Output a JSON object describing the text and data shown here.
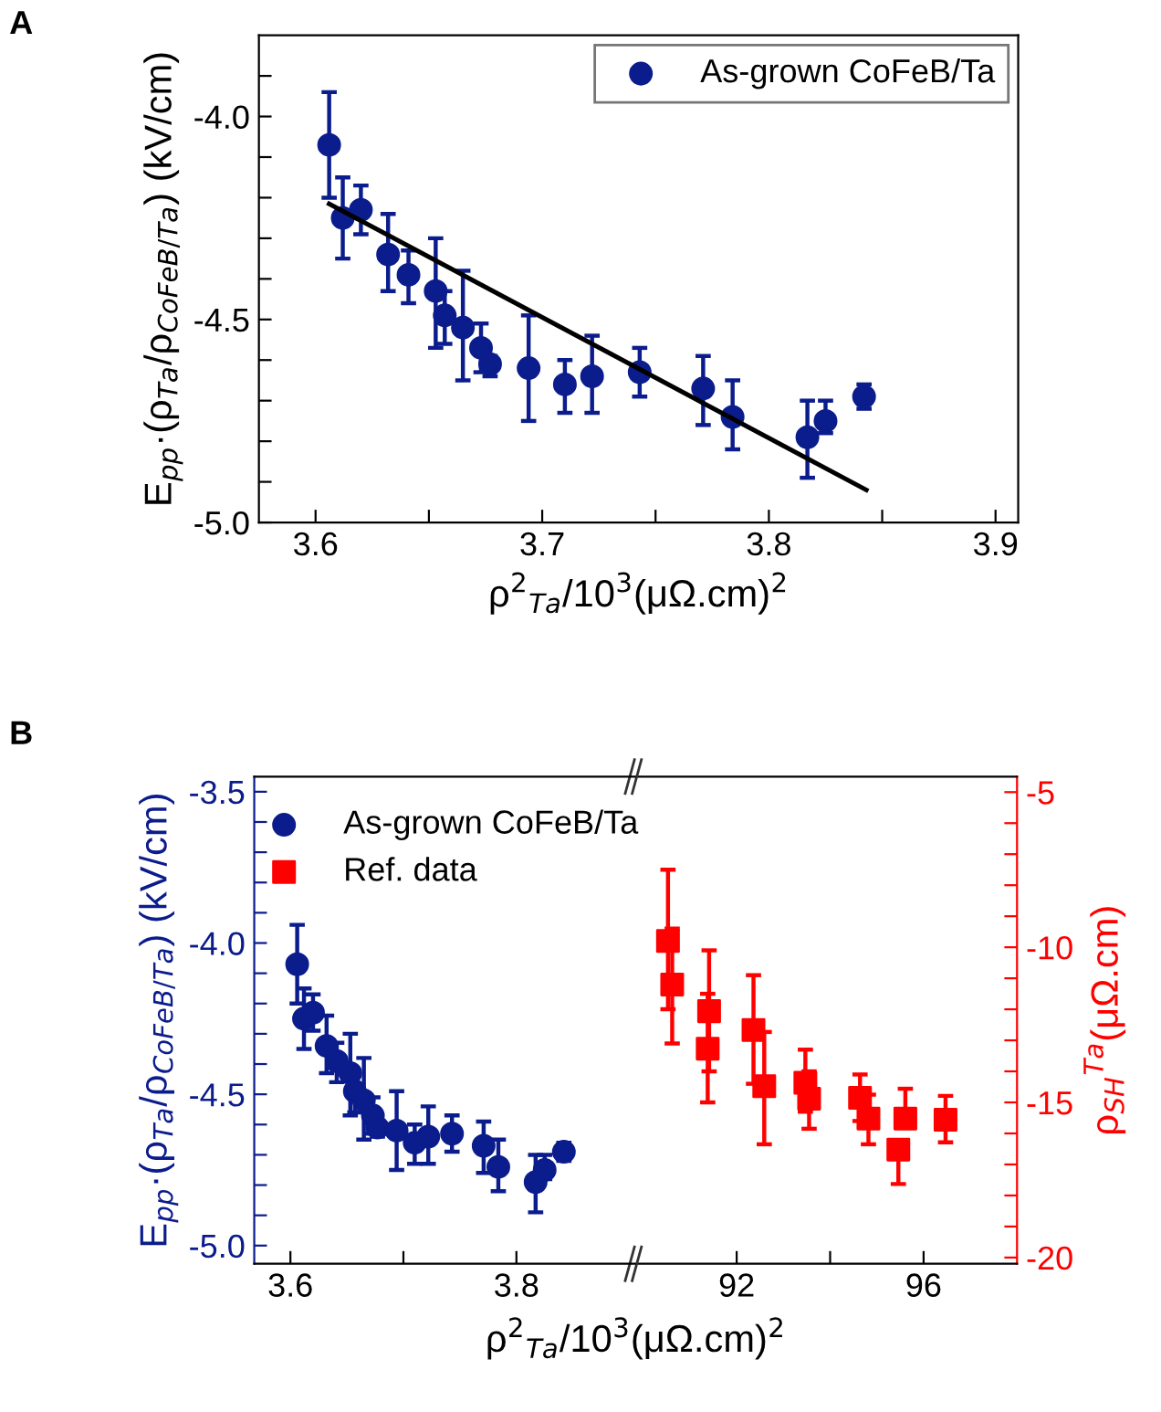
{
  "chart_data": [
    {
      "type": "scatter",
      "annotations": [
        "A"
      ],
      "xlabel": "ρ$^{2}$$_{Ta}$/10$^{3}$(μΩ.cm)$^{2}$",
      "ylabel": "E$_{pp}$·(ρ$_{Ta}$/ρ$_{CoFeB/Ta}$) (kV/cm)",
      "xlim": [
        3.575,
        3.91
      ],
      "ylim": [
        -5.0,
        -3.8
      ],
      "xticks": [
        3.6,
        {
          "value": 3.65,
          "label": null
        },
        3.7,
        {
          "value": 3.75,
          "label": null
        },
        3.8,
        {
          "value": 3.85,
          "label": null
        },
        3.9
      ],
      "yticks": [
        {
          "value": -5.0,
          "label": "-5.0"
        },
        {
          "value": -4.9,
          "label": null
        },
        {
          "value": -4.8,
          "label": null
        },
        {
          "value": -4.7,
          "label": null
        },
        {
          "value": -4.6,
          "label": null
        },
        {
          "value": -4.5,
          "label": "-4.5"
        },
        {
          "value": -4.4,
          "label": null
        },
        {
          "value": -4.3,
          "label": null
        },
        {
          "value": -4.2,
          "label": null
        },
        {
          "value": -4.1,
          "label": null
        },
        {
          "value": -4.0,
          "label": "-4.0"
        },
        {
          "value": -3.9,
          "label": null
        }
      ],
      "legend": "top right",
      "series": [
        {
          "name": "As-grown CoFeB/Ta",
          "color": "#0b1c8c",
          "marker": "circle",
          "x": [
            3.606,
            3.612,
            3.62,
            3.632,
            3.641,
            3.653,
            3.657,
            3.665,
            3.673,
            3.677,
            3.694,
            3.71,
            3.722,
            3.743,
            3.771,
            3.784,
            3.817,
            3.825,
            3.842
          ],
          "values": [
            -4.07,
            -4.25,
            -4.23,
            -4.34,
            -4.39,
            -4.43,
            -4.49,
            -4.52,
            -4.57,
            -4.61,
            -4.62,
            -4.66,
            -4.64,
            -4.63,
            -4.67,
            -4.74,
            -4.79,
            -4.75,
            -4.69
          ],
          "errors": [
            [
              -4.2,
              -3.94
            ],
            [
              -4.35,
              -4.15
            ],
            [
              -4.29,
              -4.17
            ],
            [
              -4.43,
              -4.24
            ],
            [
              -4.46,
              -4.33
            ],
            [
              -4.57,
              -4.3
            ],
            [
              -4.56,
              -4.43
            ],
            [
              -4.65,
              -4.38
            ],
            [
              -4.63,
              -4.51
            ],
            [
              -4.64,
              -4.59
            ],
            [
              -4.75,
              -4.49
            ],
            [
              -4.73,
              -4.6
            ],
            [
              -4.73,
              -4.54
            ],
            [
              -4.69,
              -4.57
            ],
            [
              -4.76,
              -4.59
            ],
            [
              -4.82,
              -4.65
            ],
            [
              -4.89,
              -4.7
            ],
            [
              -4.78,
              -4.7
            ],
            [
              -4.72,
              -4.66
            ]
          ]
        },
        {
          "type": "line",
          "color": "#000000",
          "x": [
            3.606,
            3.843
          ],
          "values": [
            -4.215,
            -4.92
          ]
        }
      ]
    },
    {
      "type": "scatter",
      "annotations": [
        "B"
      ],
      "xlabel": "ρ$^{2}$$_{Ta}$/10$^{3}$(μΩ.cm)$^{2}$",
      "ylabel": "E$_{pp}$·(ρ$_{Ta}$/ρ$_{CoFeB/Ta}$) (kV/cm)",
      "xlim": [
        3.568,
        3.905
      ],
      "ylim": [
        -5.06,
        -3.45
      ],
      "xticks": [
        3.6,
        {
          "value": 3.7,
          "label": null
        },
        3.8
      ],
      "yticks": [
        {
          "value": -5.0,
          "label": "-5.0"
        },
        {
          "value": -4.9,
          "label": null
        },
        {
          "value": -4.8,
          "label": null
        },
        {
          "value": -4.7,
          "label": null
        },
        {
          "value": -4.6,
          "label": null
        },
        {
          "value": -4.5,
          "label": "-4.5"
        },
        {
          "value": -4.4,
          "label": null
        },
        {
          "value": -4.3,
          "label": null
        },
        {
          "value": -4.2,
          "label": null
        },
        {
          "value": -4.1,
          "label": null
        },
        {
          "value": -4.0,
          "label": "-4.0"
        },
        {
          "value": -3.9,
          "label": null
        },
        {
          "value": -3.8,
          "label": null
        },
        {
          "value": -3.7,
          "label": null
        },
        {
          "value": -3.6,
          "label": null
        },
        {
          "value": -3.5,
          "label": "-3.5"
        }
      ],
      "legend": "top",
      "series": [
        {
          "name": "As-grown CoFeB/Ta",
          "color": "#0b1c8c",
          "marker": "circle",
          "x": [
            3.606,
            3.612,
            3.62,
            3.632,
            3.641,
            3.653,
            3.657,
            3.665,
            3.673,
            3.677,
            3.694,
            3.71,
            3.722,
            3.743,
            3.771,
            3.784,
            3.817,
            3.825,
            3.842
          ],
          "values": [
            -4.07,
            -4.25,
            -4.23,
            -4.34,
            -4.39,
            -4.43,
            -4.49,
            -4.52,
            -4.57,
            -4.61,
            -4.62,
            -4.66,
            -4.64,
            -4.63,
            -4.67,
            -4.74,
            -4.79,
            -4.75,
            -4.69
          ],
          "errors": [
            [
              -4.2,
              -3.94
            ],
            [
              -4.35,
              -4.15
            ],
            [
              -4.29,
              -4.17
            ],
            [
              -4.43,
              -4.24
            ],
            [
              -4.46,
              -4.33
            ],
            [
              -4.57,
              -4.3
            ],
            [
              -4.56,
              -4.49
            ],
            [
              -4.65,
              -4.38
            ],
            [
              -4.63,
              -4.51
            ],
            [
              -4.64,
              -4.61
            ],
            [
              -4.75,
              -4.49
            ],
            [
              -4.73,
              -4.6
            ],
            [
              -4.73,
              -4.54
            ],
            [
              -4.69,
              -4.57
            ],
            [
              -4.76,
              -4.59
            ],
            [
              -4.82,
              -4.65
            ],
            [
              -4.89,
              -4.7
            ],
            [
              -4.78,
              -4.7
            ],
            [
              -4.72,
              -4.66
            ]
          ]
        }
      ]
    },
    {
      "type": "scatter",
      "y2label": "ρ$_{SH}$$^{Ta}$(μΩ.cm)",
      "xlim": [
        89.9,
        98
      ],
      "y2lim": [
        -20.2,
        -4.5
      ],
      "xticks": [
        92,
        {
          "value": 94,
          "label": null
        },
        96
      ],
      "y2ticks": [
        -20,
        {
          "value": -19,
          "label": null
        },
        {
          "value": -18,
          "label": null
        },
        {
          "value": -17,
          "label": null
        },
        {
          "value": -16,
          "label": null
        },
        -15,
        {
          "value": -14,
          "label": null
        },
        {
          "value": -13,
          "label": null
        },
        {
          "value": -12,
          "label": null
        },
        {
          "value": -11,
          "label": null
        },
        -10,
        {
          "value": -9,
          "label": null
        },
        {
          "value": -8,
          "label": null
        },
        {
          "value": -7,
          "label": null
        },
        {
          "value": -6,
          "label": null
        },
        -5
      ],
      "series": [
        {
          "name": "Ref. data",
          "color": "#ff0000",
          "axis": "y2",
          "marker": "square",
          "x": [
            90.53,
            90.62,
            91.41,
            91.38,
            92.36,
            92.59,
            93.47,
            93.55,
            94.64,
            94.82,
            95.46,
            95.61,
            96.47
          ],
          "values": [
            -9.8,
            -11.2,
            -12.06,
            -13.27,
            -12.67,
            -14.48,
            -14.37,
            -14.88,
            -14.85,
            -15.52,
            -16.52,
            -15.52,
            -15.56
          ],
          "errors": [
            [
              -12.0,
              -7.5
            ],
            [
              -13.1,
              -9.4
            ],
            [
              -14.0,
              -10.1
            ],
            [
              -15.0,
              -11.5
            ],
            [
              -14.4,
              -10.9
            ],
            [
              -16.35,
              -12.73
            ],
            [
              -15.3,
              -13.3
            ],
            [
              -15.85,
              -14.0
            ],
            [
              -15.6,
              -14.1
            ],
            [
              -16.35,
              -14.75
            ],
            [
              -17.63,
              -16.52
            ],
            [
              -15.52,
              -14.56
            ],
            [
              -16.29,
              -14.79
            ]
          ]
        }
      ]
    }
  ]
}
